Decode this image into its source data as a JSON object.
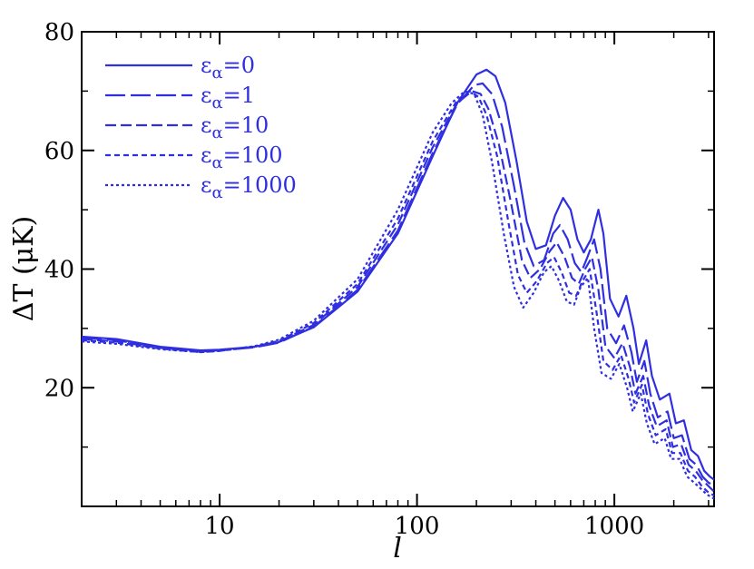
{
  "chart_data": {
    "type": "line",
    "xscale": "log",
    "xlim": [
      2,
      3200
    ],
    "ylim": [
      0,
      80
    ],
    "xlabel": "l",
    "ylabel": "ΔT (μK)",
    "xticks": [
      10,
      100,
      1000
    ],
    "xtick_labels": [
      "10",
      "100",
      "1000"
    ],
    "yticks": [
      20,
      40,
      60,
      80
    ],
    "ytick_labels": [
      "20",
      "40",
      "60",
      "80"
    ],
    "legend_position": "top-left",
    "grid": false,
    "color": "#2f2fe0",
    "series": [
      {
        "name": "εα=0",
        "label_base": "ε",
        "label_sub": "α",
        "label_value": "=0",
        "dash": "solid",
        "points": [
          [
            2,
            28.6
          ],
          [
            3,
            28.2
          ],
          [
            5,
            26.9
          ],
          [
            8,
            26.3
          ],
          [
            10,
            26.4
          ],
          [
            15,
            26.9
          ],
          [
            20,
            27.7
          ],
          [
            30,
            30.2
          ],
          [
            50,
            36.2
          ],
          [
            80,
            46.0
          ],
          [
            120,
            59.0
          ],
          [
            160,
            68.0
          ],
          [
            200,
            72.8
          ],
          [
            225,
            73.6
          ],
          [
            250,
            72.5
          ],
          [
            280,
            68.0
          ],
          [
            320,
            58.0
          ],
          [
            360,
            48.0
          ],
          [
            400,
            43.4
          ],
          [
            450,
            44.0
          ],
          [
            500,
            49.0
          ],
          [
            550,
            52.0
          ],
          [
            600,
            50.0
          ],
          [
            650,
            45.0
          ],
          [
            700,
            42.8
          ],
          [
            760,
            45.0
          ],
          [
            830,
            50.0
          ],
          [
            880,
            46.0
          ],
          [
            950,
            35.0
          ],
          [
            1050,
            32.0
          ],
          [
            1150,
            35.5
          ],
          [
            1250,
            30.0
          ],
          [
            1330,
            24.0
          ],
          [
            1450,
            28.0
          ],
          [
            1550,
            22.0
          ],
          [
            1700,
            18.0
          ],
          [
            1900,
            19.0
          ],
          [
            2050,
            14.0
          ],
          [
            2250,
            14.5
          ],
          [
            2450,
            9.5
          ],
          [
            2650,
            8.5
          ],
          [
            2850,
            6.0
          ],
          [
            3050,
            5.0
          ],
          [
            3200,
            4.5
          ]
        ]
      },
      {
        "name": "εα=1",
        "label_base": "ε",
        "label_sub": "α",
        "label_value": "=1",
        "dash": "longdash",
        "points": [
          [
            2,
            28.4
          ],
          [
            3,
            28.0
          ],
          [
            5,
            26.8
          ],
          [
            8,
            26.2
          ],
          [
            10,
            26.3
          ],
          [
            15,
            26.8
          ],
          [
            20,
            27.6
          ],
          [
            30,
            30.3
          ],
          [
            50,
            36.5
          ],
          [
            80,
            46.5
          ],
          [
            120,
            59.5
          ],
          [
            160,
            67.8
          ],
          [
            195,
            71.0
          ],
          [
            215,
            71.3
          ],
          [
            240,
            69.5
          ],
          [
            270,
            64.0
          ],
          [
            310,
            54.0
          ],
          [
            350,
            44.5
          ],
          [
            390,
            40.5
          ],
          [
            440,
            41.5
          ],
          [
            490,
            46.0
          ],
          [
            530,
            47.4
          ],
          [
            580,
            45.0
          ],
          [
            630,
            41.0
          ],
          [
            680,
            39.5
          ],
          [
            730,
            42.0
          ],
          [
            790,
            45.0
          ],
          [
            850,
            40.0
          ],
          [
            920,
            30.0
          ],
          [
            1020,
            27.5
          ],
          [
            1120,
            30.5
          ],
          [
            1220,
            26.0
          ],
          [
            1300,
            21.0
          ],
          [
            1420,
            24.5
          ],
          [
            1520,
            19.0
          ],
          [
            1660,
            15.0
          ],
          [
            1860,
            16.0
          ],
          [
            2000,
            11.5
          ],
          [
            2200,
            12.0
          ],
          [
            2400,
            8.0
          ],
          [
            2600,
            7.0
          ],
          [
            2800,
            5.0
          ],
          [
            3000,
            4.0
          ],
          [
            3200,
            3.5
          ]
        ]
      },
      {
        "name": "εα=10",
        "label_base": "ε",
        "label_sub": "α",
        "label_value": "=10",
        "dash": "dash",
        "points": [
          [
            2,
            28.2
          ],
          [
            3,
            27.8
          ],
          [
            5,
            26.7
          ],
          [
            8,
            26.1
          ],
          [
            10,
            26.3
          ],
          [
            15,
            26.9
          ],
          [
            20,
            27.8
          ],
          [
            30,
            30.6
          ],
          [
            50,
            37.0
          ],
          [
            80,
            47.5
          ],
          [
            120,
            60.5
          ],
          [
            160,
            68.0
          ],
          [
            190,
            70.0
          ],
          [
            210,
            69.5
          ],
          [
            230,
            67.0
          ],
          [
            260,
            61.0
          ],
          [
            300,
            51.0
          ],
          [
            340,
            41.5
          ],
          [
            375,
            38.5
          ],
          [
            420,
            40.0
          ],
          [
            470,
            43.0
          ],
          [
            510,
            44.5
          ],
          [
            560,
            42.0
          ],
          [
            610,
            38.5
          ],
          [
            660,
            37.5
          ],
          [
            710,
            40.0
          ],
          [
            770,
            42.0
          ],
          [
            830,
            36.5
          ],
          [
            900,
            27.0
          ],
          [
            1000,
            25.0
          ],
          [
            1100,
            27.5
          ],
          [
            1200,
            23.5
          ],
          [
            1280,
            19.0
          ],
          [
            1400,
            22.0
          ],
          [
            1500,
            17.0
          ],
          [
            1640,
            13.5
          ],
          [
            1840,
            14.5
          ],
          [
            1980,
            10.0
          ],
          [
            2180,
            10.5
          ],
          [
            2380,
            7.0
          ],
          [
            2580,
            6.0
          ],
          [
            2780,
            4.5
          ],
          [
            2980,
            3.5
          ],
          [
            3200,
            2.5
          ]
        ]
      },
      {
        "name": "εα=100",
        "label_base": "ε",
        "label_sub": "α",
        "label_value": "=100",
        "dash": "shortdash",
        "points": [
          [
            2,
            28.0
          ],
          [
            3,
            27.6
          ],
          [
            5,
            26.6
          ],
          [
            8,
            26.0
          ],
          [
            10,
            26.2
          ],
          [
            15,
            26.9
          ],
          [
            20,
            27.9
          ],
          [
            30,
            30.9
          ],
          [
            50,
            37.5
          ],
          [
            80,
            48.5
          ],
          [
            120,
            61.5
          ],
          [
            160,
            68.5
          ],
          [
            185,
            70.0
          ],
          [
            205,
            69.0
          ],
          [
            225,
            66.0
          ],
          [
            255,
            59.0
          ],
          [
            290,
            48.0
          ],
          [
            325,
            39.0
          ],
          [
            360,
            36.0
          ],
          [
            405,
            38.0
          ],
          [
            455,
            41.0
          ],
          [
            495,
            42.0
          ],
          [
            540,
            39.5
          ],
          [
            590,
            36.0
          ],
          [
            640,
            35.5
          ],
          [
            690,
            38.0
          ],
          [
            750,
            40.0
          ],
          [
            810,
            33.0
          ],
          [
            880,
            24.5
          ],
          [
            980,
            23.0
          ],
          [
            1080,
            25.5
          ],
          [
            1180,
            21.5
          ],
          [
            1260,
            17.5
          ],
          [
            1380,
            20.5
          ],
          [
            1480,
            15.5
          ],
          [
            1620,
            12.0
          ],
          [
            1820,
            13.0
          ],
          [
            1960,
            9.0
          ],
          [
            2160,
            9.0
          ],
          [
            2360,
            6.0
          ],
          [
            2560,
            5.0
          ],
          [
            2760,
            3.5
          ],
          [
            2960,
            2.5
          ],
          [
            3200,
            1.8
          ]
        ]
      },
      {
        "name": "εα=1000",
        "label_base": "ε",
        "label_sub": "α",
        "label_value": "=1000",
        "dash": "dot",
        "points": [
          [
            2,
            27.8
          ],
          [
            3,
            27.4
          ],
          [
            5,
            26.5
          ],
          [
            8,
            26.0
          ],
          [
            10,
            26.2
          ],
          [
            15,
            27.0
          ],
          [
            20,
            28.1
          ],
          [
            30,
            31.3
          ],
          [
            50,
            38.3
          ],
          [
            80,
            50.0
          ],
          [
            120,
            63.0
          ],
          [
            150,
            68.0
          ],
          [
            175,
            70.0
          ],
          [
            195,
            69.5
          ],
          [
            215,
            66.0
          ],
          [
            240,
            58.0
          ],
          [
            275,
            46.0
          ],
          [
            310,
            37.0
          ],
          [
            345,
            33.5
          ],
          [
            390,
            36.0
          ],
          [
            440,
            39.5
          ],
          [
            480,
            40.5
          ],
          [
            525,
            38.0
          ],
          [
            575,
            34.5
          ],
          [
            625,
            34.0
          ],
          [
            675,
            37.0
          ],
          [
            735,
            38.5
          ],
          [
            790,
            30.0
          ],
          [
            860,
            22.5
          ],
          [
            960,
            21.5
          ],
          [
            1060,
            24.0
          ],
          [
            1160,
            20.0
          ],
          [
            1240,
            16.0
          ],
          [
            1360,
            19.0
          ],
          [
            1460,
            14.0
          ],
          [
            1600,
            10.5
          ],
          [
            1800,
            11.5
          ],
          [
            1940,
            8.0
          ],
          [
            2140,
            8.0
          ],
          [
            2340,
            5.0
          ],
          [
            2540,
            4.0
          ],
          [
            2740,
            3.0
          ],
          [
            2940,
            2.0
          ],
          [
            3200,
            1.3
          ]
        ]
      }
    ]
  }
}
